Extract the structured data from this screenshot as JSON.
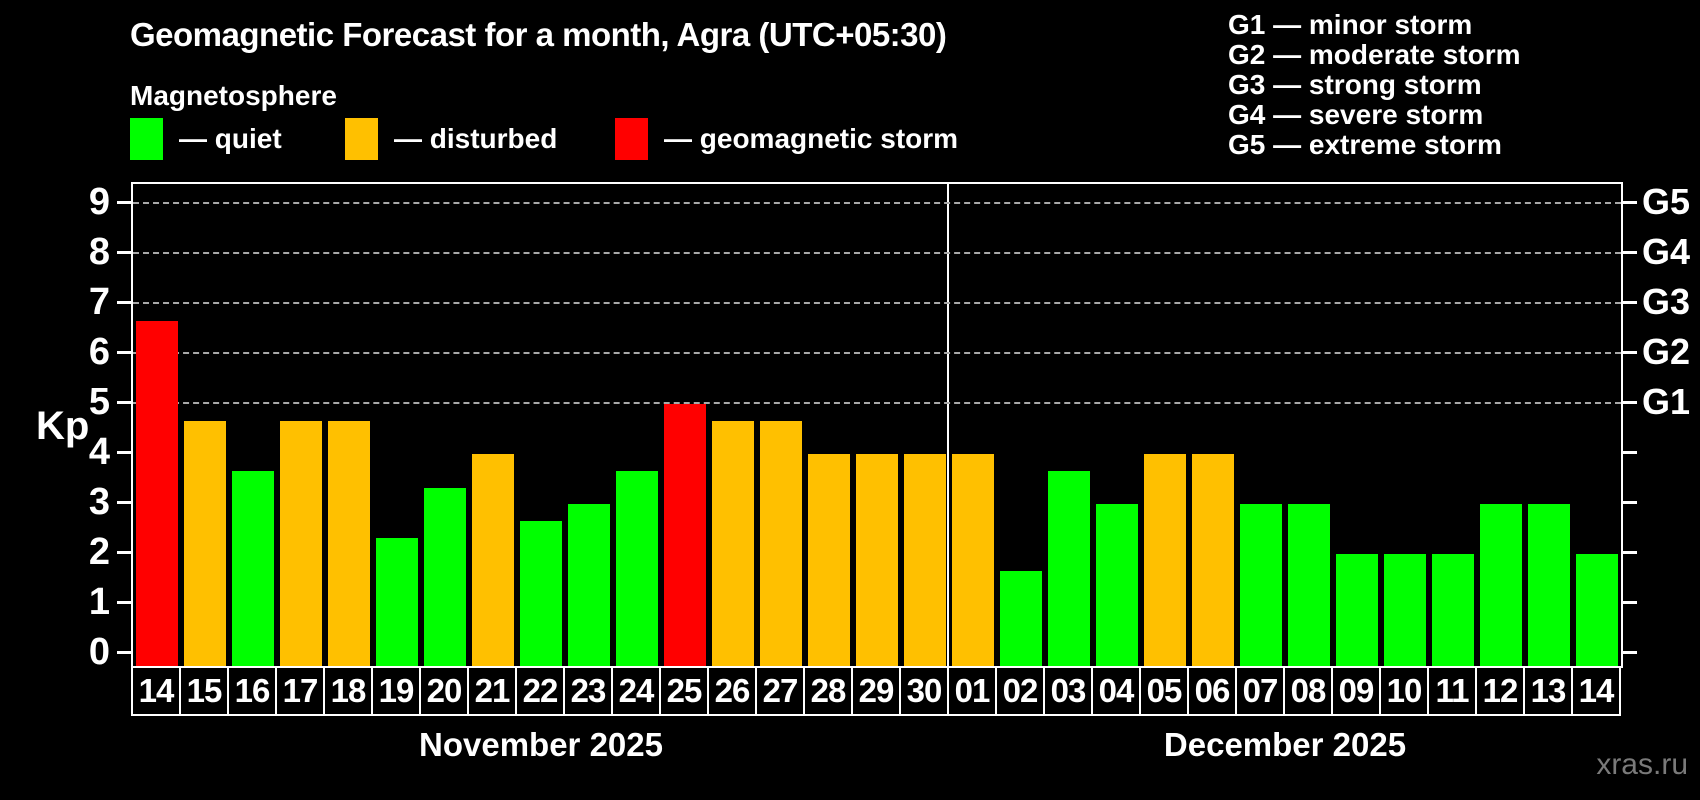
{
  "title": "Geomagnetic Forecast for a month, Agra (UTC+05:30)",
  "subtitle": "Magnetosphere",
  "watermark": "xras.ru",
  "colors": {
    "quiet": "#00ff00",
    "disturbed": "#ffc000",
    "storm": "#ff0000",
    "grid": "#a8a8a8",
    "watermark": "#7a7a7a",
    "background": "#000000",
    "text": "#ffffff"
  },
  "legend": {
    "items": [
      {
        "status": "quiet",
        "label": "— quiet"
      },
      {
        "status": "disturbed",
        "label": "— disturbed"
      },
      {
        "status": "storm",
        "label": "— geomagnetic storm"
      }
    ]
  },
  "g_legend": [
    "G1 — minor storm",
    "G2 — moderate storm",
    "G3 — strong storm",
    "G4 — severe storm",
    "G5 — extreme storm"
  ],
  "y_axis": {
    "label": "Kp",
    "ticks": [
      "0",
      "1",
      "2",
      "3",
      "4",
      "5",
      "6",
      "7",
      "8",
      "9"
    ],
    "g_ticks": [
      {
        "kp": 5,
        "label": "G1"
      },
      {
        "kp": 6,
        "label": "G2"
      },
      {
        "kp": 7,
        "label": "G3"
      },
      {
        "kp": 8,
        "label": "G4"
      },
      {
        "kp": 9,
        "label": "G5"
      }
    ]
  },
  "months": [
    {
      "label": "November 2025",
      "days": 17
    },
    {
      "label": "December 2025",
      "days": 14
    }
  ],
  "chart_data": {
    "type": "bar",
    "title": "Geomagnetic Forecast for a month, Agra (UTC+05:30)",
    "xlabel": "",
    "ylabel": "Kp",
    "ylim": [
      0,
      9.4
    ],
    "grid": "horizontal dashed lines at Kp 5,6,7,8,9 only",
    "gridlines_kp": [
      5,
      6,
      7,
      8,
      9
    ],
    "legend_position": "top-left",
    "months": [
      {
        "label": "November 2025",
        "days": 17
      },
      {
        "label": "December 2025",
        "days": 14
      }
    ],
    "categories": [
      "14",
      "15",
      "16",
      "17",
      "18",
      "19",
      "20",
      "21",
      "22",
      "23",
      "24",
      "25",
      "26",
      "27",
      "28",
      "29",
      "30",
      "01",
      "02",
      "03",
      "04",
      "05",
      "06",
      "07",
      "08",
      "09",
      "10",
      "11",
      "12",
      "13",
      "14"
    ],
    "values": [
      6.67,
      4.67,
      3.67,
      4.67,
      4.67,
      2.33,
      3.33,
      4,
      2.67,
      3,
      3.67,
      5,
      4.67,
      4.67,
      4,
      4,
      4,
      4,
      1.67,
      3.67,
      3,
      4,
      4,
      3,
      3,
      2,
      2,
      2,
      3,
      3,
      2
    ],
    "statuses": [
      "storm",
      "disturbed",
      "quiet",
      "disturbed",
      "disturbed",
      "quiet",
      "quiet",
      "disturbed",
      "quiet",
      "quiet",
      "quiet",
      "storm",
      "disturbed",
      "disturbed",
      "disturbed",
      "disturbed",
      "disturbed",
      "disturbed",
      "quiet",
      "quiet",
      "quiet",
      "disturbed",
      "disturbed",
      "quiet",
      "quiet",
      "quiet",
      "quiet",
      "quiet",
      "quiet",
      "quiet",
      "quiet"
    ]
  }
}
